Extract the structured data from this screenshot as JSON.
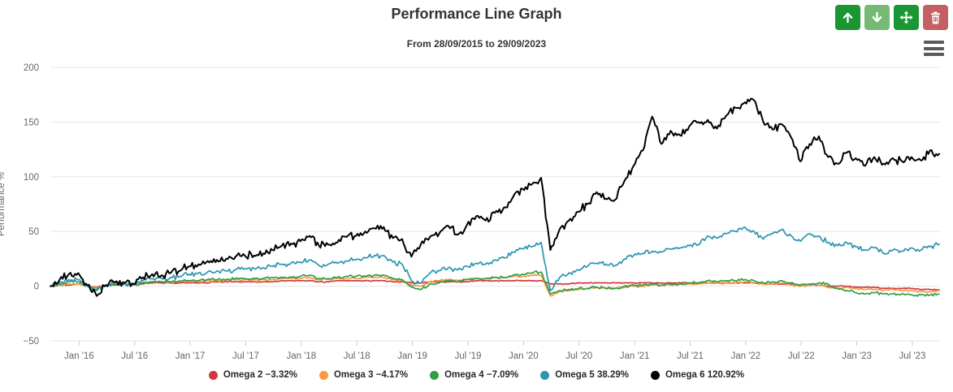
{
  "header": {
    "title": "Performance Line Graph",
    "subtitle": "From 28/09/2015 to 29/09/2023"
  },
  "toolbar": {
    "buttons": [
      "arrow-up-icon",
      "arrow-down-icon",
      "move-icon",
      "trash-icon"
    ],
    "colors": {
      "primary_green": "#1a9632",
      "light_green": "#74ba75",
      "danger_red": "#c45f63"
    }
  },
  "chart_menu_icon": "hamburger-menu-icon",
  "chart_data": {
    "type": "line",
    "title": "Performance Line Graph",
    "subtitle": "From 28/09/2015 to 29/09/2023",
    "ylabel": "Performance %",
    "ylim": [
      -50,
      200
    ],
    "y_ticks": [
      -50,
      0,
      50,
      100,
      150,
      200
    ],
    "x_tick_labels": [
      "Jan '16",
      "Jul '16",
      "Jan '17",
      "Jul '17",
      "Jan '18",
      "Jul '18",
      "Jan '19",
      "Jul '19",
      "Jan '20",
      "Jul '20",
      "Jan '21",
      "Jul '21",
      "Jan '22",
      "Jul '22",
      "Jan '23",
      "Jul '23"
    ],
    "x_range": [
      "28/09/2015",
      "29/09/2023"
    ],
    "grid": true,
    "legend_position": "bottom",
    "axis_colors": {
      "grid": "#e6e6e6",
      "tick": "#cccccc",
      "label": "#666666"
    },
    "series": [
      {
        "name": "Omega 2",
        "legend_label": "Omega 2 −3.32%",
        "final_value": "−3.32%",
        "color": "#d23840",
        "noise": 0.3,
        "monthly_values": [
          0,
          1,
          1,
          2,
          0,
          -1,
          1,
          1,
          2,
          2,
          2,
          3,
          3,
          3,
          3,
          3,
          3,
          3,
          4,
          4,
          4,
          4,
          4,
          4,
          4,
          5,
          5,
          5,
          5,
          4,
          4,
          5,
          5,
          5,
          5,
          5,
          5,
          4,
          4,
          3,
          3,
          4,
          4,
          4,
          4,
          4,
          5,
          5,
          5,
          5,
          5,
          5,
          5,
          5,
          2,
          2,
          2,
          3,
          3,
          3,
          3,
          3,
          3,
          3,
          3,
          3,
          3,
          3,
          3,
          3,
          3,
          3,
          3,
          3,
          3,
          3,
          3,
          2,
          2,
          2,
          2,
          1,
          1,
          1,
          0,
          0,
          0,
          -1,
          -1,
          -1,
          -2,
          -2,
          -2,
          -2,
          -3,
          -3,
          -3.32
        ]
      },
      {
        "name": "Omega 3",
        "legend_label": "Omega 3 −4.17%",
        "final_value": "−4.17%",
        "color": "#f89a3e",
        "noise": 0.6,
        "monthly_values": [
          0,
          1,
          2,
          2,
          0,
          -2,
          1,
          2,
          2,
          2,
          3,
          4,
          4,
          4,
          4,
          5,
          4,
          5,
          5,
          5,
          6,
          6,
          6,
          6,
          6,
          7,
          7,
          7,
          8,
          6,
          6,
          7,
          7,
          7,
          8,
          8,
          8,
          6,
          5,
          1,
          0,
          4,
          5,
          6,
          5,
          6,
          7,
          7,
          8,
          8,
          9,
          9,
          10,
          10,
          -9,
          -5,
          -4,
          -3,
          -2,
          -1,
          -2,
          -2,
          -1,
          0,
          0,
          1,
          1,
          1,
          2,
          2,
          2,
          3,
          3,
          3,
          3,
          4,
          3,
          2,
          2,
          3,
          1,
          0,
          1,
          1,
          -1,
          -2,
          -1,
          -2,
          -3,
          -3,
          -4,
          -3,
          -4,
          -4,
          -5,
          -5,
          -4.17
        ]
      },
      {
        "name": "Omega 4",
        "legend_label": "Omega 4 −7.09%",
        "final_value": "−7.09%",
        "color": "#2e9e49",
        "noise": 0.8,
        "monthly_values": [
          0,
          2,
          4,
          4,
          0,
          -3,
          1,
          2,
          2,
          1,
          3,
          4,
          4,
          4,
          5,
          5,
          5,
          6,
          6,
          6,
          7,
          7,
          7,
          7,
          8,
          8,
          8,
          9,
          10,
          7,
          7,
          8,
          9,
          9,
          9,
          10,
          10,
          7,
          6,
          -1,
          -3,
          2,
          3,
          5,
          4,
          6,
          7,
          7,
          8,
          8,
          10,
          11,
          12,
          13,
          -7,
          -4,
          -3,
          -2,
          -2,
          -1,
          -2,
          -2,
          0,
          1,
          1,
          2,
          1,
          2,
          2,
          3,
          3,
          5,
          4,
          5,
          5,
          6,
          5,
          3,
          4,
          5,
          3,
          1,
          2,
          3,
          2,
          -2,
          -4,
          -6,
          -7,
          -6,
          -7,
          -7,
          -7,
          -8,
          -8,
          -8,
          -7.09
        ]
      },
      {
        "name": "Omega 5",
        "legend_label": "Omega 5 38.29%",
        "final_value": "38.29%",
        "color": "#2a95ae",
        "noise": 1.5,
        "monthly_values": [
          0,
          3,
          6,
          6,
          0,
          -4,
          1,
          3,
          2,
          2,
          5,
          7,
          7,
          8,
          9,
          11,
          12,
          13,
          14,
          14,
          15,
          16,
          16,
          17,
          18,
          20,
          21,
          22,
          24,
          19,
          20,
          21,
          23,
          24,
          26,
          28,
          28,
          22,
          20,
          5,
          3,
          12,
          14,
          17,
          15,
          18,
          21,
          20,
          24,
          26,
          31,
          34,
          36,
          40,
          -4,
          8,
          12,
          15,
          18,
          21,
          20,
          19,
          25,
          28,
          30,
          32,
          31,
          34,
          35,
          37,
          38,
          46,
          44,
          48,
          50,
          54,
          50,
          43,
          48,
          52,
          46,
          41,
          48,
          46,
          40,
          37,
          40,
          36,
          33,
          35,
          30,
          33,
          32,
          35,
          33,
          36,
          38.29
        ]
      },
      {
        "name": "Omega 6",
        "legend_label": "Omega 6 120.92%",
        "final_value": "120.92%",
        "color": "#000000",
        "noise": 2.5,
        "monthly_values": [
          0,
          6,
          11,
          12,
          1,
          -9,
          1,
          4,
          3,
          2,
          8,
          11,
          10,
          12,
          14,
          18,
          20,
          23,
          24,
          25,
          27,
          28,
          28,
          30,
          33,
          37,
          39,
          41,
          46,
          37,
          38,
          40,
          45,
          46,
          50,
          53,
          54,
          44,
          43,
          27,
          38,
          45,
          48,
          55,
          47,
          56,
          64,
          60,
          67,
          72,
          82,
          89,
          93,
          99,
          33,
          52,
          60,
          68,
          75,
          86,
          80,
          79,
          96,
          110,
          124,
          155,
          130,
          142,
          138,
          146,
          150,
          152,
          144,
          156,
          163,
          168,
          170,
          150,
          143,
          148,
          136,
          114,
          130,
          137,
          118,
          112,
          122,
          117,
          110,
          118,
          112,
          117,
          114,
          118,
          115,
          124,
          120.92
        ]
      }
    ]
  }
}
